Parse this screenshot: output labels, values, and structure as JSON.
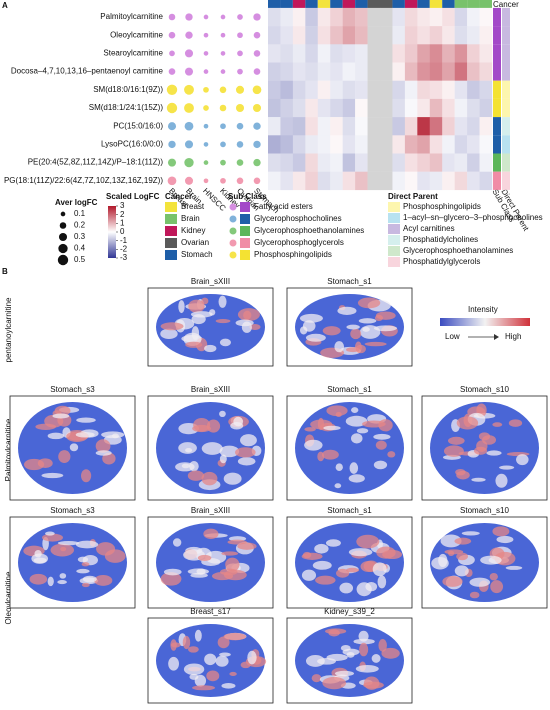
{
  "panel_a": {
    "label": "A",
    "metabolites": [
      "Palmitoylcarnitine",
      "Oleoylcarnitine",
      "Stearoylcarnitine",
      "Docosa–4,7,10,13,16–pentaenoyl carnitine",
      "SM(d18:0/16:1(9Z))",
      "SM(d18:1/24:1(15Z))",
      "PC(15:0/16:0)",
      "LysoPC(16:0/0:0)",
      "PE(20:4(5Z,8Z,11Z,14Z)/P–18:1(11Z))",
      "PG(18:1(11Z)/22:6(4Z,7Z,10Z,13Z,16Z,19Z))"
    ],
    "row_sub_class": [
      "Fatty acid esters",
      "Fatty acid esters",
      "Fatty acid esters",
      "Fatty acid esters",
      "Phosphosphingolipids",
      "Phosphosphingolipids",
      "Glycerophosphocholines",
      "Glycerophosphocholines",
      "Glycerophosphoethanolamines",
      "Glycerophosphoglycerols"
    ],
    "row_direct_parent": [
      "Acyl carnitines",
      "Acyl carnitines",
      "Acyl carnitines",
      "Acyl carnitines",
      "Phosphosphingolipids",
      "Phosphosphingolipids",
      "Phosphatidylcholines",
      "1–acyl–sn–glycero–3–phosphocholines",
      "Glycerophosphoethanolamines",
      "Phosphatidylglycerols"
    ],
    "dot_columns": [
      "Breast",
      "Brain",
      "HNSCC",
      "Kidney",
      "Ovarian",
      "Stomach"
    ],
    "aver_logfc": [
      [
        0.2,
        0.25,
        0.1,
        0.1,
        0.15,
        0.25
      ],
      [
        0.2,
        0.25,
        0.1,
        0.1,
        0.15,
        0.2
      ],
      [
        0.15,
        0.3,
        0.1,
        0.1,
        0.15,
        0.2
      ],
      [
        0.2,
        0.3,
        0.1,
        0.1,
        0.15,
        0.2
      ],
      [
        0.5,
        0.45,
        0.15,
        0.2,
        0.3,
        0.35
      ],
      [
        0.5,
        0.45,
        0.15,
        0.2,
        0.3,
        0.3
      ],
      [
        0.3,
        0.35,
        0.1,
        0.15,
        0.2,
        0.25
      ],
      [
        0.25,
        0.3,
        0.1,
        0.15,
        0.2,
        0.25
      ],
      [
        0.3,
        0.4,
        0.1,
        0.15,
        0.2,
        0.25
      ],
      [
        0.35,
        0.3,
        0.1,
        0.15,
        0.2,
        0.2
      ]
    ],
    "heatmap_column_cancer": [
      "Stomach",
      "Stomach",
      "Kidney",
      "Stomach",
      "Breast",
      "Stomach",
      "Kidney",
      "Stomach",
      "Ovarian",
      "Ovarian",
      "Stomach",
      "Kidney",
      "Stomach",
      "Breast",
      "Stomach",
      "Brain",
      "Brain",
      "Brain"
    ],
    "scaled_logfc": [
      [
        -0.5,
        -0.3,
        0.2,
        -0.8,
        0.3,
        0.6,
        1.0,
        0.8,
        null,
        null,
        -0.4,
        0.5,
        0.3,
        0.2,
        0.4,
        -0.6,
        -0.2,
        0.1
      ],
      [
        -0.6,
        -0.4,
        0.3,
        -0.7,
        0.4,
        0.8,
        1.2,
        0.9,
        null,
        null,
        -0.3,
        0.6,
        0.4,
        0.6,
        0.3,
        -0.5,
        -0.3,
        0.2
      ],
      [
        -0.4,
        -0.5,
        -0.3,
        -0.6,
        -0.2,
        -0.5,
        -0.4,
        -0.3,
        null,
        null,
        0.4,
        0.7,
        1.2,
        1.5,
        1.0,
        1.4,
        0.6,
        0.3
      ],
      [
        -0.7,
        -0.6,
        -0.4,
        -0.5,
        -0.3,
        -0.4,
        -0.2,
        -0.3,
        null,
        null,
        0.2,
        0.9,
        1.4,
        1.6,
        1.2,
        1.8,
        0.8,
        0.5
      ],
      [
        -0.8,
        -1.0,
        -0.6,
        -0.4,
        0.2,
        -0.3,
        -0.5,
        -0.4,
        null,
        null,
        -0.6,
        -0.2,
        0.5,
        0.4,
        0.2,
        -0.4,
        -0.8,
        -0.6
      ],
      [
        -0.9,
        -0.7,
        -0.5,
        0.3,
        -0.4,
        -0.6,
        -0.8,
        0.1,
        null,
        null,
        -0.5,
        -0.1,
        0.3,
        0.9,
        0.4,
        -0.2,
        -0.5,
        -0.7
      ],
      [
        -0.3,
        -0.8,
        -0.9,
        0.4,
        -0.2,
        0.2,
        -0.5,
        -0.1,
        null,
        null,
        -0.8,
        0.5,
        2.6,
        1.8,
        0.6,
        -0.4,
        -0.6,
        0.2
      ],
      [
        -1.2,
        -1.0,
        -0.6,
        -0.3,
        -0.2,
        0.1,
        -0.4,
        -0.2,
        null,
        null,
        0.3,
        1.0,
        1.2,
        0.4,
        -0.2,
        -0.6,
        -0.4,
        -0.1
      ],
      [
        -0.5,
        -0.6,
        -0.8,
        0.5,
        -0.3,
        -0.2,
        -0.9,
        -0.4,
        null,
        null,
        -0.5,
        0.4,
        0.6,
        0.8,
        -0.4,
        -0.3,
        -0.7,
        -0.2
      ],
      [
        -0.2,
        -0.4,
        0.3,
        0.6,
        -0.5,
        -0.3,
        0.4,
        0.8,
        null,
        null,
        -0.2,
        0.1,
        -0.4,
        -0.3,
        0.2,
        0.5,
        -0.4,
        -0.6
      ]
    ],
    "cancer_title": "Cancer",
    "sub_class_title": "Sub Class",
    "direct_parent_title": "Direct Parent",
    "legend": {
      "aver_title": "Aver logFC",
      "aver_ticks": [
        0.1,
        0.2,
        0.3,
        0.4,
        0.5
      ],
      "scaled_title": "Scaled LogFC",
      "scaled_lim": [
        -3,
        3
      ],
      "scaled_ticks": [
        3,
        2,
        1,
        0,
        -1,
        -2,
        -3
      ],
      "cancer": [
        {
          "name": "Breast",
          "color": "#f3e33b"
        },
        {
          "name": "Brain",
          "color": "#78c26b"
        },
        {
          "name": "Kidney",
          "color": "#c0185a"
        },
        {
          "name": "Ovarian",
          "color": "#5a5a5a"
        },
        {
          "name": "Stomach",
          "color": "#1e5ea8"
        }
      ],
      "sub_class": [
        {
          "name": "Fatty acid esters",
          "dot": "#d58ee0",
          "color": "#a349c8"
        },
        {
          "name": "Glycerophosphocholines",
          "dot": "#80b2da",
          "color": "#1e5ea8"
        },
        {
          "name": "Glycerophosphoethanolamines",
          "dot": "#84c97b",
          "color": "#5cb65a"
        },
        {
          "name": "Glycerophosphoglycerols",
          "dot": "#f29ab0",
          "color": "#f08ca6"
        },
        {
          "name": "Phosphosphingolipids",
          "dot": "#f6e44a",
          "color": "#f4e232"
        }
      ],
      "direct_parent": [
        {
          "name": "Phosphosphingolipids",
          "color": "#fdf6ae"
        },
        {
          "name": "1–acyl–sn–glycero–3–phosphocholines",
          "color": "#b8e2f0"
        },
        {
          "name": "Acyl carnitines",
          "color": "#c8b9e0"
        },
        {
          "name": "Phosphatidylcholines",
          "color": "#d5efed"
        },
        {
          "name": "Glycerophosphoethanolamines",
          "color": "#cfe8cb"
        },
        {
          "name": "Phosphatidylglycerols",
          "color": "#f8d5dd"
        }
      ]
    }
  },
  "panel_b": {
    "label": "B",
    "row_labels": [
      "pentanoylcarnitine",
      "Palmitoylcarnitine",
      "Oleoylcarnitine"
    ],
    "intensity_title": "Intensity",
    "low": "Low",
    "high": "High",
    "images": [
      [
        "Brain_sXIII",
        "Stomach_s1"
      ],
      [
        "Stomach_s3",
        "Brain_sXIII",
        "Stomach_s1",
        "Stomach_s10"
      ],
      [
        "Stomach_s3",
        "Brain_sXIII",
        "Stomach_s1",
        "Stomach_s10"
      ],
      [
        "Breast_s17",
        "Kidney_s39_2"
      ]
    ]
  }
}
